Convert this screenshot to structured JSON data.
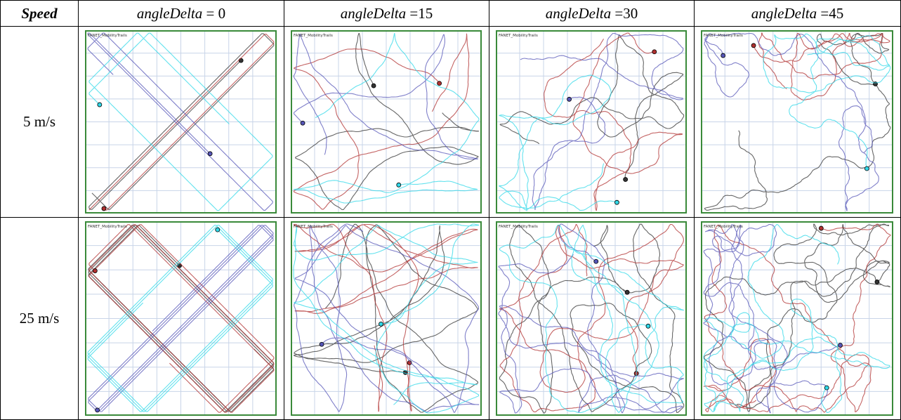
{
  "table": {
    "header": {
      "corner": "Speed",
      "columns": [
        {
          "italic": "angleDelta",
          "rest": " = 0"
        },
        {
          "italic": "angleDelta",
          "rest": " =15"
        },
        {
          "italic": "angleDelta",
          "rest": " =30"
        },
        {
          "italic": "angleDelta",
          "rest": " =45"
        }
      ]
    },
    "rows": [
      {
        "label": "5 m/s",
        "panels": [
          "FANET_MobilityTrails",
          "FANET_MobilityTrails",
          "FANET_MobilityTrails",
          "FANET_MobilityTrails"
        ]
      },
      {
        "label": "25 m/s",
        "panels": [
          "FANET_MobilityTrails",
          "FANET_MobilityTrails",
          "FANET_MobilityTrails",
          "FANET_MobilityTrails"
        ]
      }
    ]
  }
}
